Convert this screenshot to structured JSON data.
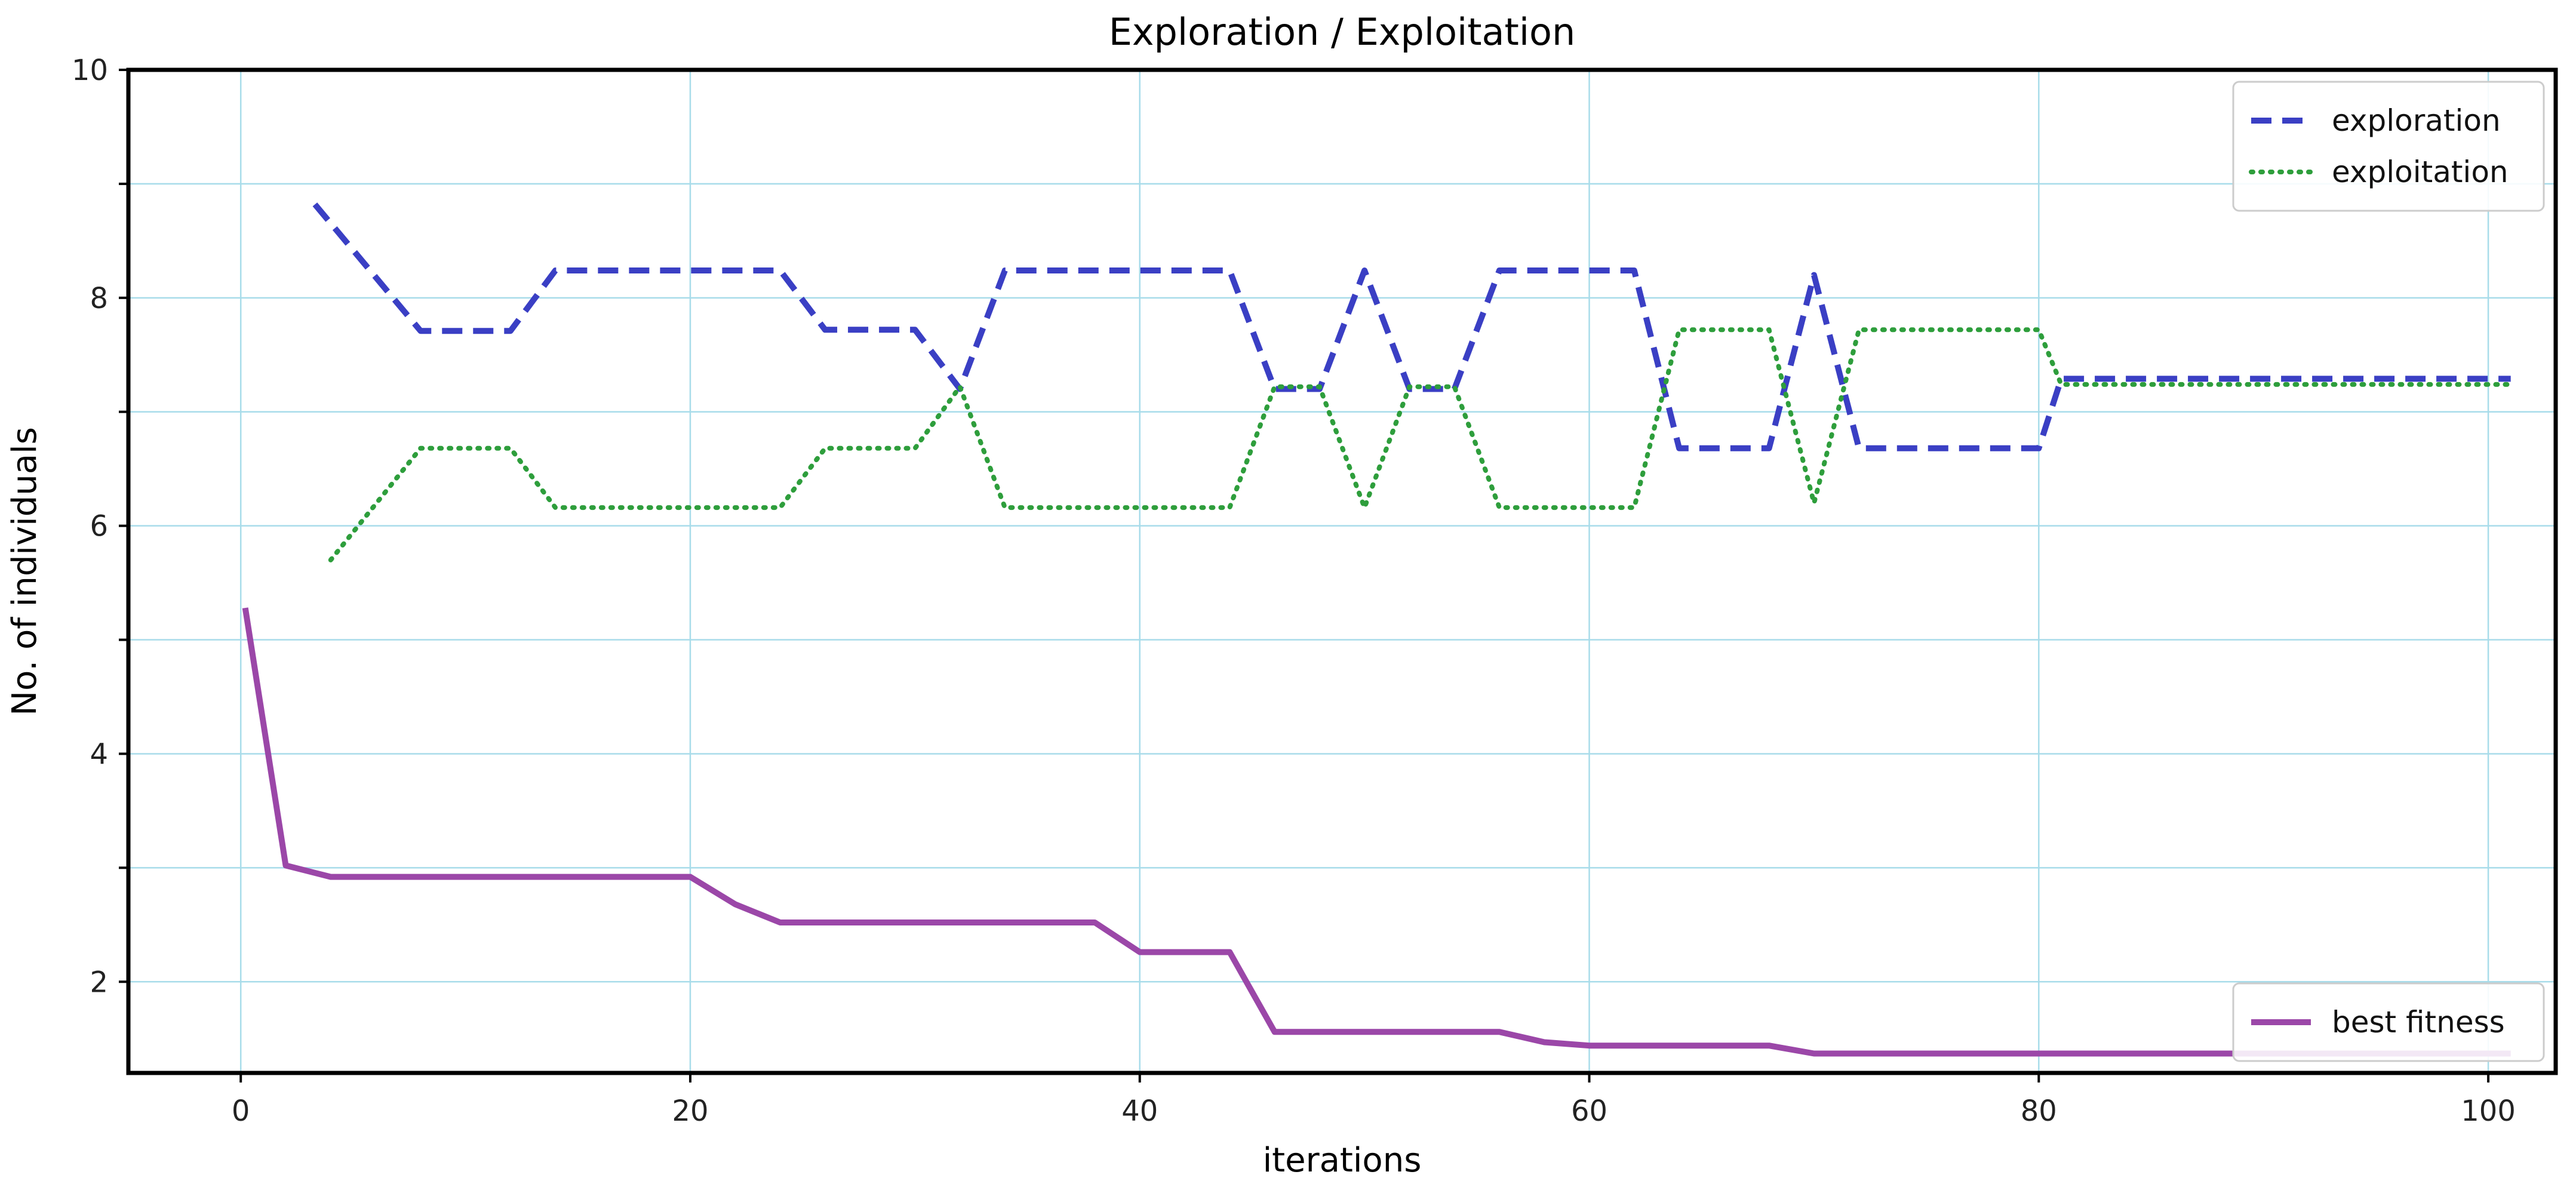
{
  "chart_data": {
    "type": "line",
    "title": "Exploration / Exploitation",
    "xlabel": "iterations",
    "ylabel": "No. of individuals",
    "xlim": [
      -5,
      103
    ],
    "ylim": [
      1.2,
      10
    ],
    "xticks": [
      0,
      20,
      40,
      60,
      80,
      100
    ],
    "yticks_labeled": [
      2,
      4,
      6,
      8,
      10
    ],
    "ygrid": [
      2,
      3,
      4,
      5,
      6,
      7,
      8,
      9,
      10
    ],
    "grid": true,
    "grid_color": "#a8dcea",
    "legends": [
      {
        "position": "top-right",
        "entries": [
          "exploration",
          "exploitation"
        ]
      },
      {
        "position": "bottom-right",
        "entries": [
          "best fitness"
        ]
      }
    ],
    "series": [
      {
        "name": "exploration",
        "style": "dashed",
        "color": "#3a3fc4",
        "x": [
          3.3,
          8,
          12,
          14,
          24,
          26,
          30,
          32,
          34,
          44,
          46,
          48,
          50,
          52,
          54,
          56,
          62,
          64,
          68,
          70,
          72,
          80,
          81,
          101
        ],
        "y": [
          8.82,
          7.71,
          7.71,
          8.24,
          8.24,
          7.72,
          7.72,
          7.2,
          8.24,
          8.24,
          7.2,
          7.2,
          8.24,
          7.2,
          7.2,
          8.24,
          8.24,
          6.68,
          6.68,
          8.2,
          6.68,
          6.68,
          7.29,
          7.29
        ]
      },
      {
        "name": "exploitation",
        "style": "dotted",
        "color": "#2e9e3c",
        "x": [
          4,
          8,
          12,
          14,
          24,
          26,
          30,
          32,
          34,
          44,
          46,
          48,
          50,
          52,
          54,
          56,
          62,
          64,
          68,
          70,
          72,
          80,
          81,
          101
        ],
        "y": [
          5.7,
          6.68,
          6.68,
          6.16,
          6.16,
          6.68,
          6.68,
          7.22,
          6.16,
          6.16,
          7.22,
          7.22,
          6.16,
          7.22,
          7.22,
          6.16,
          6.16,
          7.72,
          7.72,
          6.2,
          7.72,
          7.72,
          7.24,
          7.24
        ]
      },
      {
        "name": "best fitness",
        "style": "solid",
        "color": "#9b47a8",
        "x": [
          0.2,
          2,
          4,
          10,
          20,
          22,
          24,
          30,
          38,
          40,
          44,
          46,
          56,
          58,
          60,
          68,
          70,
          80,
          101
        ],
        "y": [
          5.28,
          3.02,
          2.92,
          2.92,
          2.92,
          2.68,
          2.52,
          2.52,
          2.52,
          2.26,
          2.26,
          1.56,
          1.56,
          1.47,
          1.44,
          1.44,
          1.37,
          1.37,
          1.37
        ]
      }
    ]
  }
}
